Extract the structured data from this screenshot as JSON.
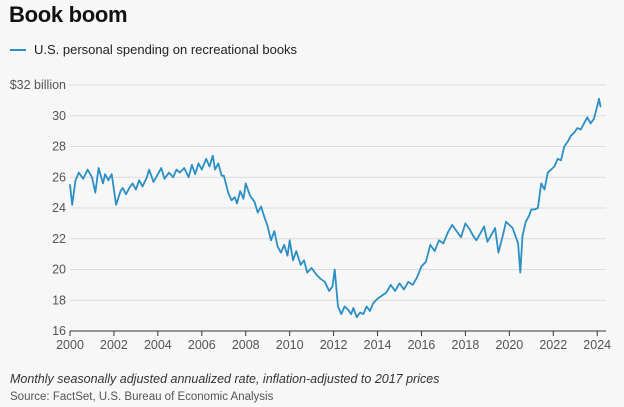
{
  "header": {
    "title": "Book boom"
  },
  "footer": {
    "note": "Monthly seasonally adjusted annualized rate, inflation-adjusted to 2017 prices",
    "source": "Source: FactSet, U.S. Bureau of Economic Analysis"
  },
  "colors": {
    "line": "#2b8fc4",
    "grid": "#dcdcdc",
    "background": "#f7f7f7"
  },
  "chart_data": {
    "type": "line",
    "title": "Book boom",
    "xlabel": "",
    "ylabel": "",
    "ylabel_top": "$32 billion",
    "xlim": [
      2000,
      2024.4
    ],
    "ylim": [
      16,
      32
    ],
    "xticks": [
      2000,
      2002,
      2004,
      2006,
      2008,
      2010,
      2012,
      2014,
      2016,
      2018,
      2020,
      2022,
      2024
    ],
    "yticks": [
      16,
      18,
      20,
      22,
      24,
      26,
      28,
      30,
      32
    ],
    "ytick_labels": [
      "16",
      "18",
      "20",
      "22",
      "24",
      "26",
      "28",
      "30",
      "$32 billion"
    ],
    "grid": true,
    "legend_position": "top-left",
    "series": [
      {
        "name": "U.S. personal spending on recreational books",
        "x": [
          2000.0,
          2000.1,
          2000.25,
          2000.4,
          2000.6,
          2000.8,
          2001.0,
          2001.15,
          2001.3,
          2001.5,
          2001.6,
          2001.75,
          2001.9,
          2002.1,
          2002.3,
          2002.4,
          2002.55,
          2002.7,
          2002.85,
          2003.0,
          2003.15,
          2003.3,
          2003.5,
          2003.6,
          2003.8,
          2004.0,
          2004.15,
          2004.3,
          2004.5,
          2004.7,
          2004.85,
          2005.0,
          2005.2,
          2005.4,
          2005.55,
          2005.7,
          2005.85,
          2006.0,
          2006.2,
          2006.35,
          2006.5,
          2006.6,
          2006.75,
          2006.9,
          2007.0,
          2007.2,
          2007.35,
          2007.5,
          2007.6,
          2007.75,
          2007.9,
          2008.0,
          2008.2,
          2008.4,
          2008.55,
          2008.7,
          2008.85,
          2009.0,
          2009.15,
          2009.3,
          2009.45,
          2009.6,
          2009.75,
          2009.9,
          2010.0,
          2010.15,
          2010.3,
          2010.5,
          2010.65,
          2010.8,
          2011.0,
          2011.2,
          2011.4,
          2011.6,
          2011.8,
          2011.95,
          2012.05,
          2012.2,
          2012.35,
          2012.5,
          2012.65,
          2012.8,
          2012.9,
          2013.05,
          2013.2,
          2013.35,
          2013.5,
          2013.65,
          2013.8,
          2014.0,
          2014.2,
          2014.4,
          2014.6,
          2014.8,
          2015.0,
          2015.2,
          2015.4,
          2015.6,
          2015.8,
          2016.0,
          2016.2,
          2016.4,
          2016.6,
          2016.8,
          2017.0,
          2017.2,
          2017.4,
          2017.6,
          2017.8,
          2018.0,
          2018.2,
          2018.35,
          2018.5,
          2018.7,
          2018.85,
          2019.0,
          2019.2,
          2019.35,
          2019.5,
          2019.7,
          2019.85,
          2020.0,
          2020.15,
          2020.3,
          2020.4,
          2020.5,
          2020.6,
          2020.75,
          2020.9,
          2021.0,
          2021.15,
          2021.3,
          2021.45,
          2021.6,
          2021.75,
          2021.9,
          2022.05,
          2022.2,
          2022.35,
          2022.5,
          2022.65,
          2022.8,
          2022.95,
          2023.1,
          2023.25,
          2023.4,
          2023.55,
          2023.7,
          2023.85,
          2024.0,
          2024.08,
          2024.15
        ],
        "values": [
          25.5,
          24.2,
          25.8,
          26.3,
          25.9,
          26.5,
          26.0,
          25.0,
          26.6,
          25.6,
          26.2,
          25.8,
          26.2,
          24.2,
          25.1,
          25.3,
          24.9,
          25.3,
          25.6,
          25.2,
          25.8,
          25.4,
          26.0,
          26.5,
          25.7,
          26.2,
          26.6,
          25.9,
          26.3,
          26.0,
          26.5,
          26.3,
          26.6,
          26.0,
          26.8,
          26.2,
          26.9,
          26.5,
          27.2,
          26.7,
          27.4,
          26.5,
          26.9,
          26.1,
          26.1,
          25.0,
          24.5,
          24.7,
          24.3,
          25.1,
          24.6,
          25.6,
          24.8,
          24.4,
          23.7,
          24.1,
          23.4,
          22.8,
          21.9,
          22.5,
          21.5,
          21.1,
          21.6,
          20.9,
          21.9,
          20.6,
          21.2,
          20.3,
          20.6,
          19.8,
          20.1,
          19.7,
          19.4,
          19.2,
          18.6,
          18.9,
          20.0,
          17.6,
          17.1,
          17.6,
          17.4,
          17.1,
          17.5,
          16.9,
          17.2,
          17.1,
          17.6,
          17.3,
          17.8,
          18.1,
          18.3,
          18.5,
          19.0,
          18.6,
          19.1,
          18.7,
          19.2,
          19.0,
          19.5,
          20.2,
          20.5,
          21.6,
          21.2,
          21.9,
          21.7,
          22.4,
          22.9,
          22.5,
          22.1,
          23.0,
          22.6,
          22.2,
          21.9,
          22.4,
          22.8,
          21.8,
          22.3,
          22.7,
          21.1,
          22.2,
          23.1,
          22.9,
          22.7,
          22.1,
          21.7,
          19.8,
          22.2,
          23.1,
          23.5,
          23.9,
          23.9,
          24.0,
          25.6,
          25.2,
          26.3,
          26.5,
          26.7,
          27.2,
          27.1,
          28.0,
          28.3,
          28.7,
          28.9,
          29.2,
          29.1,
          29.5,
          29.9,
          29.5,
          29.8,
          30.6,
          31.1,
          30.6
        ]
      }
    ]
  }
}
